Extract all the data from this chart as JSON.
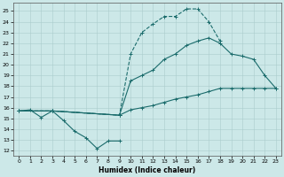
{
  "xlabel": "Humidex (Indice chaleur)",
  "xlim": [
    -0.5,
    23.5
  ],
  "ylim": [
    11.5,
    25.8
  ],
  "yticks": [
    12,
    13,
    14,
    15,
    16,
    17,
    18,
    19,
    20,
    21,
    22,
    23,
    24,
    25
  ],
  "xticks": [
    0,
    1,
    2,
    3,
    4,
    5,
    6,
    7,
    8,
    9,
    10,
    11,
    12,
    13,
    14,
    15,
    16,
    17,
    18,
    19,
    20,
    21,
    22,
    23
  ],
  "bg_color": "#cce8e8",
  "line_color": "#1a6b6b",
  "line1_x": [
    0,
    1,
    2,
    3,
    4,
    5,
    6,
    7,
    8,
    9
  ],
  "line1_y": [
    15.7,
    15.8,
    15.1,
    15.7,
    14.8,
    13.8,
    13.2,
    12.2,
    12.9,
    12.9
  ],
  "line2_x": [
    0,
    3,
    9,
    10,
    11,
    12,
    13,
    14,
    15,
    16,
    17,
    18
  ],
  "line2_y": [
    15.7,
    15.7,
    15.3,
    21.0,
    23.0,
    23.8,
    24.5,
    24.5,
    25.2,
    25.2,
    24.0,
    22.2
  ],
  "line3_x": [
    0,
    3,
    9,
    10,
    11,
    12,
    13,
    14,
    15,
    16,
    17,
    18,
    19,
    20,
    21,
    22,
    23
  ],
  "line3_y": [
    15.7,
    15.7,
    15.3,
    18.5,
    19.0,
    19.5,
    20.5,
    21.0,
    21.8,
    22.2,
    22.5,
    22.0,
    21.0,
    20.8,
    20.5,
    19.0,
    17.8
  ],
  "line4_x": [
    0,
    3,
    9,
    10,
    11,
    12,
    13,
    14,
    15,
    16,
    17,
    18,
    19,
    20,
    21,
    22,
    23
  ],
  "line4_y": [
    15.7,
    15.7,
    15.3,
    15.8,
    16.0,
    16.2,
    16.5,
    16.8,
    17.0,
    17.2,
    17.5,
    17.8,
    17.8,
    17.8,
    17.8,
    17.8,
    17.8
  ]
}
